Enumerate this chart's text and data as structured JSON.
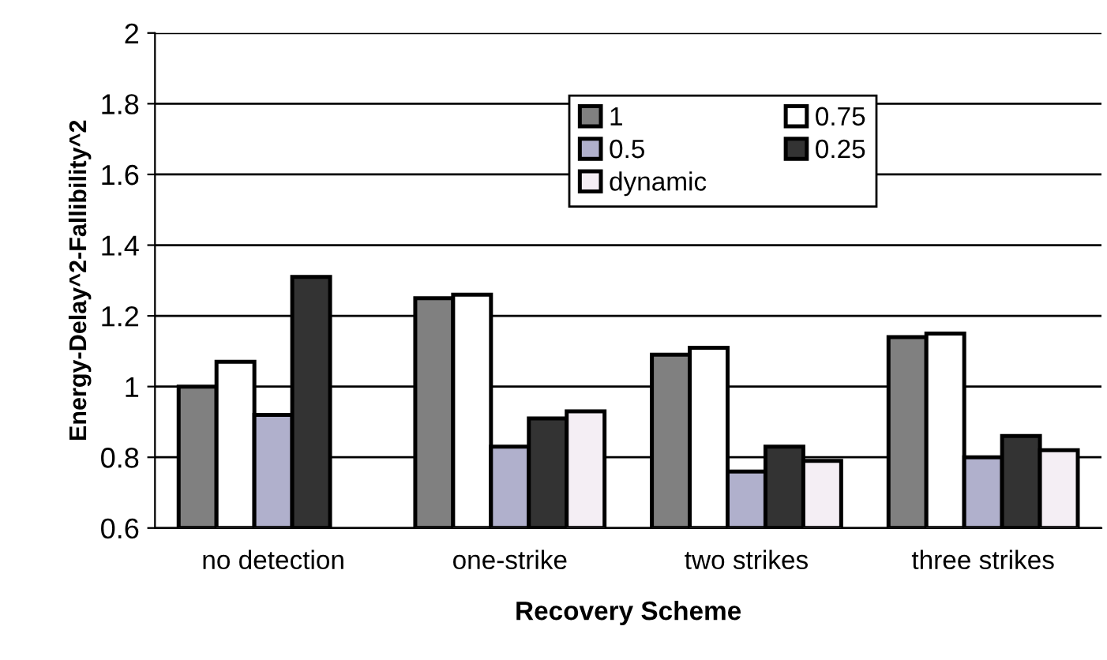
{
  "chart_data": {
    "type": "bar",
    "xlabel": "Recovery Scheme",
    "ylabel": "Energy-Delay^2-Fallibility^2",
    "categories": [
      "no detection",
      "one-strike",
      "two strikes",
      "three strikes"
    ],
    "series": [
      {
        "name": "1",
        "color": "#808080",
        "values": [
          1.0,
          1.25,
          1.09,
          1.14
        ]
      },
      {
        "name": "0.75",
        "color": "#ffffff",
        "values": [
          1.07,
          1.26,
          1.11,
          1.15
        ]
      },
      {
        "name": "0.5",
        "color": "#b0b0cc",
        "values": [
          0.92,
          0.83,
          0.76,
          0.8
        ]
      },
      {
        "name": "0.25",
        "color": "#333333",
        "values": [
          1.31,
          0.91,
          0.83,
          0.86
        ]
      },
      {
        "name": "dynamic",
        "color": "#f4eef4",
        "values": [
          null,
          0.93,
          0.79,
          0.82
        ]
      }
    ],
    "ylim": [
      0.6,
      2
    ],
    "yticks": [
      {
        "value": 0.6,
        "label": "0.6"
      },
      {
        "value": 0.8,
        "label": "0.8"
      },
      1,
      {
        "value": 1.2,
        "label": "1.2"
      },
      {
        "value": 1.4,
        "label": "1.4"
      },
      {
        "value": 1.6,
        "label": "1.6"
      },
      {
        "value": 1.8,
        "label": "1.8"
      },
      2
    ],
    "grid": "y",
    "legend": "top"
  }
}
